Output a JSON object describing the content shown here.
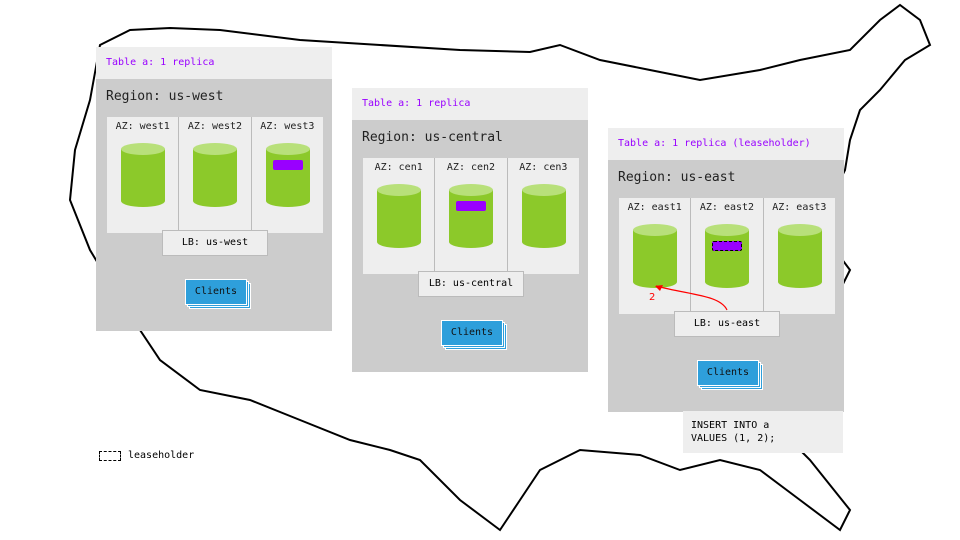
{
  "regions": [
    {
      "table_label": "Table a: 1 replica",
      "title": "Region: us-west",
      "azs": [
        "AZ: west1",
        "AZ: west2",
        "AZ: west3"
      ],
      "lb": "LB: us-west",
      "clients": "Clients",
      "replica_az": 2,
      "leaseholder": false
    },
    {
      "table_label": "Table a: 1 replica",
      "title": "Region: us-central",
      "azs": [
        "AZ: cen1",
        "AZ: cen2",
        "AZ: cen3"
      ],
      "lb": "LB: us-central",
      "clients": "Clients",
      "replica_az": 1,
      "leaseholder": false
    },
    {
      "table_label": "Table a: 1 replica (leaseholder)",
      "title": "Region: us-east",
      "azs": [
        "AZ: east1",
        "AZ: east2",
        "AZ: east3"
      ],
      "lb": "LB: us-east",
      "clients": "Clients",
      "replica_az": 1,
      "leaseholder": true
    }
  ],
  "query": {
    "line1": "INSERT INTO a",
    "line2": "VALUES (1, 2);"
  },
  "arrow_label": "2",
  "legend": {
    "label": "leaseholder"
  },
  "colors": {
    "replica": "#9900ff",
    "node": "#8cc92a",
    "clients": "#2e9fdb",
    "arrow": "#ff0000"
  }
}
